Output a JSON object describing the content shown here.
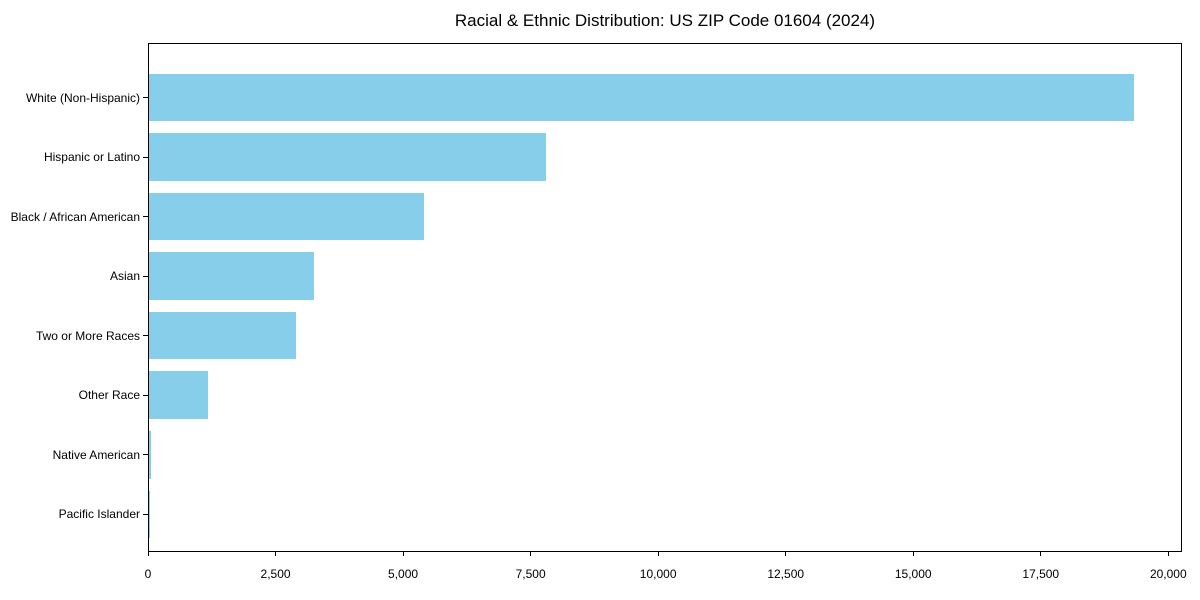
{
  "chart_data": {
    "type": "bar",
    "orientation": "horizontal",
    "title": "Racial & Ethnic Distribution: US ZIP Code 01604 (2024)",
    "categories": [
      "White (Non-Hispanic)",
      "Hispanic or Latino",
      "Black / African American",
      "Asian",
      "Two or More Races",
      "Other Race",
      "Native American",
      "Pacific Islander"
    ],
    "values": [
      19300,
      7780,
      5390,
      3240,
      2880,
      1150,
      30,
      10
    ],
    "xlabel": "",
    "ylabel": "",
    "xlim": [
      0,
      20000
    ],
    "xticks": [
      0,
      2500,
      5000,
      7500,
      10000,
      12500,
      15000,
      17500,
      20000
    ],
    "xtick_labels": [
      "0",
      "2,500",
      "5,000",
      "7,500",
      "10,000",
      "12,500",
      "15,000",
      "17,500",
      "20,000"
    ],
    "bar_color": "#87CEEB",
    "background_color": "#FFFFFF",
    "axis_color": "#000000",
    "grid": false,
    "legend": null
  }
}
